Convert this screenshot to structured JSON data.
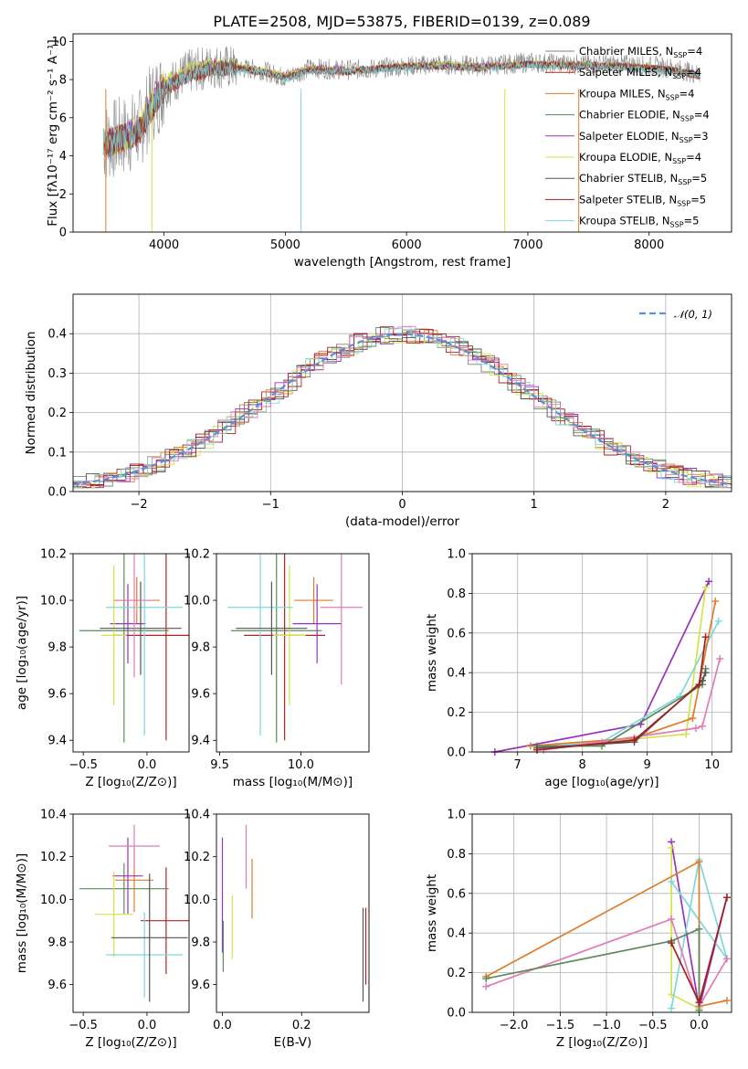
{
  "chart_data": [
    {
      "type": "line",
      "title": "PLATE=2508, MJD=53875, FIBERID=0139, z=0.089",
      "xlabel": "wavelength [Angstrom, rest frame]",
      "ylabel": "Flux [fλ10⁻¹⁷ erg cm⁻² s⁻¹ A⁻¹]",
      "xlim": [
        3250,
        8680
      ],
      "ylim": [
        0,
        10.4
      ],
      "xticks": [
        "4000",
        "5000",
        "6000",
        "7000",
        "8000"
      ],
      "yticks": [
        "0",
        "2",
        "4",
        "6",
        "8",
        "10"
      ],
      "x": [
        3500,
        3600,
        3700,
        3800,
        3900,
        4000,
        4200,
        4400,
        4600,
        4800,
        5000,
        5200,
        5500,
        5800,
        6000,
        6300,
        6600,
        7000,
        7400,
        7800,
        8200,
        8400
      ],
      "series": [
        {
          "name": "Chabrier MILES, N_SSP=4",
          "color": "#808080",
          "values": [
            4.7,
            4.9,
            5.1,
            5.4,
            6.8,
            7.6,
            8.4,
            8.7,
            8.6,
            8.5,
            8.1,
            8.6,
            8.5,
            8.6,
            8.7,
            8.8,
            8.7,
            8.9,
            8.8,
            8.8,
            8.6,
            8.3
          ]
        },
        {
          "name": "Salpeter MILES, N_SSP=4",
          "color": "#b22222",
          "values": [
            4.6,
            4.8,
            5.0,
            5.3,
            6.6,
            7.5,
            8.2,
            8.6,
            8.6,
            8.4,
            8.1,
            8.5,
            8.4,
            8.6,
            8.7,
            8.7,
            8.6,
            8.8,
            8.8,
            8.7,
            8.5,
            8.2
          ]
        },
        {
          "name": "Kroupa MILES, N_SSP=4",
          "color": "#e07b2a",
          "values": [
            4.6,
            4.7,
            5.0,
            5.3,
            6.6,
            7.5,
            8.2,
            8.6,
            8.6,
            8.4,
            8.1,
            8.5,
            8.4,
            8.6,
            8.7,
            8.7,
            8.6,
            8.8,
            8.7,
            8.7,
            8.5,
            8.2
          ]
        },
        {
          "name": "Chabrier ELODIE, N_SSP=4",
          "color": "#5c8a5c",
          "values": [
            4.7,
            4.8,
            5.0,
            5.4,
            6.7,
            7.6,
            8.3,
            8.7,
            8.6,
            8.5,
            8.1,
            8.6,
            8.5,
            8.6,
            8.7,
            8.8,
            8.7,
            8.8,
            8.8,
            8.7,
            8.5,
            8.3
          ]
        },
        {
          "name": "Salpeter ELODIE, N_SSP=3",
          "color": "#9933bb",
          "values": [
            4.7,
            4.9,
            5.1,
            5.5,
            6.8,
            7.8,
            8.4,
            8.8,
            8.7,
            8.5,
            8.2,
            8.6,
            8.5,
            8.6,
            8.7,
            8.8,
            8.7,
            8.8,
            8.8,
            8.7,
            8.5,
            8.3
          ]
        },
        {
          "name": "Kroupa ELODIE, N_SSP=4",
          "color": "#d4e34a",
          "values": [
            4.7,
            4.9,
            5.1,
            5.5,
            6.8,
            7.9,
            8.5,
            8.8,
            8.7,
            8.5,
            8.2,
            8.6,
            8.5,
            8.6,
            8.7,
            8.8,
            8.7,
            8.8,
            8.8,
            8.7,
            8.5,
            8.3
          ]
        },
        {
          "name": "Chabrier STELIB, N_SSP=5",
          "color": "#555555",
          "values": [
            4.6,
            4.8,
            5.0,
            5.3,
            6.6,
            7.5,
            8.2,
            8.6,
            8.6,
            8.4,
            8.1,
            8.5,
            8.4,
            8.6,
            8.7,
            8.7,
            8.6,
            8.8,
            8.7,
            8.7,
            8.5,
            8.2
          ]
        },
        {
          "name": "Salpeter STELIB, N_SSP=5",
          "color": "#a0201e",
          "values": [
            4.6,
            4.8,
            5.0,
            5.3,
            6.6,
            7.5,
            8.2,
            8.6,
            8.6,
            8.4,
            8.1,
            8.5,
            8.4,
            8.6,
            8.7,
            8.7,
            8.6,
            8.8,
            8.7,
            8.7,
            8.5,
            8.2
          ]
        },
        {
          "name": "Kroupa STELIB, N_SSP=5",
          "color": "#7fd6dc",
          "values": [
            4.7,
            4.8,
            5.0,
            5.3,
            6.6,
            7.6,
            8.2,
            8.6,
            8.5,
            8.4,
            8.0,
            8.4,
            8.4,
            8.5,
            8.6,
            8.7,
            8.6,
            8.7,
            8.7,
            8.6,
            8.4,
            8.2
          ]
        }
      ],
      "legend": "right"
    },
    {
      "type": "line",
      "xlabel": "(data-model)/error",
      "ylabel": "Normed distribution",
      "xlim": [
        -2.5,
        2.5
      ],
      "ylim": [
        0,
        0.5
      ],
      "xticks": [
        "−2",
        "−1",
        "0",
        "1",
        "2"
      ],
      "yticks": [
        "0.0",
        "0.1",
        "0.2",
        "0.3",
        "0.4"
      ],
      "grid": true,
      "reference_label": "𝒩(0, 1)",
      "reference_color": "#5b8fd6",
      "histogram_colors": [
        "#808080",
        "#b22222",
        "#e07b2a",
        "#5c8a5c",
        "#9933bb",
        "#d4e34a",
        "#555555",
        "#a0201e",
        "#7fd6dc",
        "#e07bb8"
      ],
      "legend": "top-right"
    },
    {
      "type": "scatter",
      "xlabel": "Z [log₁₀(Z/Z⊙)]",
      "ylabel": "age  [log₁₀(age/yr)]",
      "xlim": [
        -0.58,
        0.33
      ],
      "ylim": [
        9.35,
        10.2
      ],
      "xticks": [
        "−0.5",
        "0.0"
      ],
      "yticks": [
        "9.4",
        "9.6",
        "9.8",
        "10.0",
        "10.2"
      ],
      "points": [
        {
          "x": 0.15,
          "y": 9.85,
          "xerr": 0.42,
          "yerr": 0.45,
          "color": "#b22222"
        },
        {
          "x": -0.18,
          "y": 9.87,
          "xerr": 0.35,
          "yerr": 0.48,
          "color": "#5c8a5c"
        },
        {
          "x": -0.08,
          "y": 10.0,
          "xerr": 0.18,
          "yerr": 0.1,
          "color": "#e07b2a"
        },
        {
          "x": -0.15,
          "y": 9.9,
          "xerr": 0.14,
          "yerr": 0.17,
          "color": "#9933bb"
        },
        {
          "x": -0.26,
          "y": 9.85,
          "xerr": 0.1,
          "yerr": 0.3,
          "color": "#d4e34a"
        },
        {
          "x": -0.02,
          "y": 9.97,
          "xerr": 0.3,
          "yerr": 0.55,
          "color": "#7fd6dc"
        },
        {
          "x": -0.05,
          "y": 9.88,
          "xerr": 0.32,
          "yerr": 0.2,
          "color": "#555555"
        },
        {
          "x": -0.1,
          "y": 10.0,
          "xerr": 0.15,
          "yerr": 0.33,
          "color": "#e07bb8"
        }
      ]
    },
    {
      "type": "scatter",
      "xlabel": "mass [log₁₀(M/M⊙)]",
      "xlim": [
        9.48,
        10.42
      ],
      "ylim": [
        9.35,
        10.2
      ],
      "xticks": [
        "9.5",
        "10.0"
      ],
      "yticks": [
        "9.4",
        "9.6",
        "9.8",
        "10.0",
        "10.2"
      ],
      "points": [
        {
          "x": 9.9,
          "y": 9.85,
          "xerr": 0.25,
          "yerr": 0.45,
          "color": "#b22222"
        },
        {
          "x": 9.85,
          "y": 9.87,
          "xerr": 0.28,
          "yerr": 0.48,
          "color": "#5c8a5c"
        },
        {
          "x": 10.08,
          "y": 10.0,
          "xerr": 0.12,
          "yerr": 0.1,
          "color": "#e07b2a"
        },
        {
          "x": 10.1,
          "y": 9.9,
          "xerr": 0.15,
          "yerr": 0.17,
          "color": "#9933bb"
        },
        {
          "x": 9.93,
          "y": 9.85,
          "xerr": 0.1,
          "yerr": 0.3,
          "color": "#d4e34a"
        },
        {
          "x": 9.75,
          "y": 9.97,
          "xerr": 0.2,
          "yerr": 0.55,
          "color": "#7fd6dc"
        },
        {
          "x": 9.82,
          "y": 9.88,
          "xerr": 0.22,
          "yerr": 0.2,
          "color": "#555555"
        },
        {
          "x": 10.25,
          "y": 9.97,
          "xerr": 0.13,
          "yerr": 0.33,
          "color": "#e07bb8"
        }
      ]
    },
    {
      "type": "line",
      "xlabel": "age  [log₁₀(age/yr)]",
      "ylabel": "mass weight",
      "xlim": [
        6.3,
        10.3
      ],
      "ylim": [
        0,
        1.0
      ],
      "xticks": [
        "7",
        "8",
        "9",
        "10"
      ],
      "yticks": [
        "0.0",
        "0.2",
        "0.4",
        "0.6",
        "0.8",
        "1.0"
      ],
      "grid": true,
      "series": [
        {
          "color": "#9933bb",
          "x": [
            6.65,
            8.9,
            9.95
          ],
          "values": [
            0.0,
            0.14,
            0.86
          ]
        },
        {
          "color": "#d4e34a",
          "x": [
            7.3,
            9.6,
            9.9
          ],
          "values": [
            0.02,
            0.09,
            0.83
          ]
        },
        {
          "color": "#7fd6dc",
          "x": [
            7.6,
            8.3,
            9.5,
            10.1
          ],
          "values": [
            0.03,
            0.05,
            0.28,
            0.66
          ]
        },
        {
          "color": "#e07b2a",
          "x": [
            7.2,
            8.8,
            9.7,
            10.05
          ],
          "values": [
            0.03,
            0.07,
            0.17,
            0.76
          ]
        },
        {
          "color": "#e07bb8",
          "x": [
            7.4,
            9.75,
            9.85,
            10.12
          ],
          "values": [
            0.01,
            0.12,
            0.13,
            0.47
          ]
        },
        {
          "color": "#5c8a5c",
          "x": [
            7.3,
            8.3,
            9.85,
            9.9
          ],
          "values": [
            0.03,
            0.03,
            0.34,
            0.42
          ]
        },
        {
          "color": "#555555",
          "x": [
            7.3,
            8.8,
            9.85,
            9.9
          ],
          "values": [
            0.02,
            0.05,
            0.36,
            0.4
          ]
        },
        {
          "color": "#a0201e",
          "x": [
            7.3,
            8.8,
            9.8,
            9.9
          ],
          "values": [
            0.01,
            0.06,
            0.34,
            0.58
          ]
        }
      ]
    },
    {
      "type": "scatter",
      "xlabel": "Z [log₁₀(Z/Z⊙)]",
      "ylabel": "mass [log₁₀(M/M⊙)]",
      "xlim": [
        -0.58,
        0.33
      ],
      "ylim": [
        9.47,
        10.4
      ],
      "xticks": [
        "−0.5",
        "0.0"
      ],
      "yticks": [
        "9.6",
        "9.8",
        "10.0",
        "10.2",
        "10.4"
      ],
      "points": [
        {
          "x": 0.15,
          "y": 9.9,
          "xerr": 0.2,
          "yerr": 0.25,
          "color": "#b22222"
        },
        {
          "x": -0.18,
          "y": 10.05,
          "xerr": 0.35,
          "yerr": 0.12,
          "color": "#5c8a5c"
        },
        {
          "x": -0.1,
          "y": 10.09,
          "xerr": 0.15,
          "yerr": 0.15,
          "color": "#e07b2a"
        },
        {
          "x": -0.15,
          "y": 10.11,
          "xerr": 0.12,
          "yerr": 0.18,
          "color": "#9933bb"
        },
        {
          "x": -0.26,
          "y": 9.93,
          "xerr": 0.15,
          "yerr": 0.2,
          "color": "#d4e34a"
        },
        {
          "x": -0.02,
          "y": 9.74,
          "xerr": 0.3,
          "yerr": 0.2,
          "color": "#7fd6dc"
        },
        {
          "x": 0.02,
          "y": 9.82,
          "xerr": 0.3,
          "yerr": 0.3,
          "color": "#555555"
        },
        {
          "x": -0.1,
          "y": 10.25,
          "xerr": 0.2,
          "yerr": 0.1,
          "color": "#e07bb8"
        }
      ]
    },
    {
      "type": "scatter",
      "xlabel": "E(B-V)",
      "xlim": [
        -0.015,
        0.37
      ],
      "ylim": [
        9.47,
        10.4
      ],
      "xticks": [
        "0.0",
        "0.2"
      ],
      "yticks": [
        "9.6",
        "9.8",
        "10.0",
        "10.2",
        "10.4"
      ],
      "points": [
        {
          "x": 0.0,
          "y": 10.02,
          "yerr": 0.27,
          "color": "#9933bb"
        },
        {
          "x": 0.002,
          "y": 9.78,
          "yerr": 0.12,
          "color": "#5c8a5c"
        },
        {
          "x": 0.025,
          "y": 9.87,
          "yerr": 0.15,
          "color": "#d4e34a"
        },
        {
          "x": 0.06,
          "y": 10.2,
          "yerr": 0.15,
          "color": "#e07bb8"
        },
        {
          "x": 0.075,
          "y": 10.05,
          "yerr": 0.14,
          "color": "#e07b2a"
        },
        {
          "x": 0.355,
          "y": 9.74,
          "yerr": 0.22,
          "color": "#555555"
        },
        {
          "x": 0.362,
          "y": 9.78,
          "yerr": 0.18,
          "color": "#b22222"
        }
      ]
    },
    {
      "type": "line",
      "xlabel": "Z [log₁₀(Z/Z⊙)]",
      "ylabel": "mass weight",
      "xlim": [
        -2.45,
        0.35
      ],
      "ylim": [
        0,
        1.0
      ],
      "xticks": [
        "−2.0",
        "−1.5",
        "−1.0",
        "−0.5",
        "0.0"
      ],
      "yticks": [
        "0.0",
        "0.2",
        "0.4",
        "0.6",
        "0.8",
        "1.0"
      ],
      "grid": true,
      "series": [
        {
          "color": "#9933bb",
          "x": [
            -0.3,
            0.0,
            0.3
          ],
          "values": [
            0.86,
            0.02,
            0.58
          ]
        },
        {
          "color": "#d4e34a",
          "x": [
            -0.3,
            -0.3,
            0.0
          ],
          "values": [
            0.83,
            0.09,
            0.02
          ]
        },
        {
          "color": "#7fd6dc",
          "x": [
            -0.3,
            0.0,
            0.3,
            -0.3
          ],
          "values": [
            0.02,
            0.77,
            0.27,
            0.66
          ]
        },
        {
          "color": "#e07b2a",
          "x": [
            -2.3,
            0.0,
            0.0,
            0.3
          ],
          "values": [
            0.18,
            0.76,
            0.03,
            0.06
          ]
        },
        {
          "color": "#e07bb8",
          "x": [
            -2.3,
            -0.3,
            0.0,
            0.3
          ],
          "values": [
            0.13,
            0.47,
            0.03,
            0.27
          ]
        },
        {
          "color": "#5c8a5c",
          "x": [
            -2.3,
            -0.3,
            0.0,
            0.0
          ],
          "values": [
            0.17,
            0.36,
            0.42,
            0.01
          ]
        },
        {
          "color": "#a0201e",
          "x": [
            -0.3,
            0.0,
            0.3
          ],
          "values": [
            0.35,
            0.05,
            0.58
          ]
        }
      ]
    }
  ]
}
